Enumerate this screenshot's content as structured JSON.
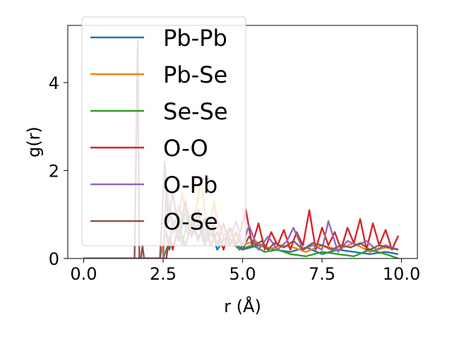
{
  "chart_data": {
    "type": "line",
    "xlabel": "r (Å)",
    "ylabel": "g(r)",
    "xlim": [
      -0.5,
      10.5
    ],
    "ylim": [
      0,
      5.3
    ],
    "xticks": [
      0.0,
      2.5,
      5.0,
      7.5,
      10.0
    ],
    "xtick_labels": [
      "0.0",
      "2.5",
      "5.0",
      "7.5",
      "10.0"
    ],
    "yticks": [
      0,
      2,
      4
    ],
    "ytick_labels": [
      "0",
      "2",
      "4"
    ],
    "grid": false,
    "legend_position": "top-left",
    "series": [
      {
        "name": "Pb-Pb",
        "color": "#1f77b4",
        "x": [
          0.0,
          2.4,
          2.5,
          2.6,
          2.7,
          2.8,
          3.0,
          3.2,
          3.4,
          3.6,
          3.8,
          4.0,
          4.2,
          4.5,
          5.0,
          5.5,
          6.0,
          6.5,
          7.0,
          7.5,
          8.0,
          8.5,
          9.0,
          9.5,
          9.9
        ],
        "y": [
          0.0,
          0.0,
          0.3,
          0.6,
          0.2,
          0.9,
          0.4,
          1.1,
          0.5,
          0.8,
          0.3,
          0.7,
          0.2,
          0.5,
          0.2,
          0.3,
          0.2,
          0.15,
          0.25,
          0.1,
          0.2,
          0.15,
          0.1,
          0.15,
          0.1
        ]
      },
      {
        "name": "Pb-Se",
        "color": "#ff7f0e",
        "x": [
          0.0,
          2.4,
          2.55,
          2.7,
          2.9,
          3.1,
          3.3,
          3.5,
          3.7,
          3.9,
          4.1,
          4.3,
          4.6,
          5.0,
          5.4,
          5.8,
          6.2,
          6.6,
          7.0,
          7.5,
          8.0,
          8.5,
          9.0,
          9.5,
          9.9
        ],
        "y": [
          0.0,
          0.0,
          0.5,
          1.2,
          0.4,
          1.5,
          0.6,
          1.0,
          1.8,
          0.5,
          1.3,
          0.4,
          0.7,
          0.3,
          0.4,
          0.2,
          0.3,
          0.25,
          0.15,
          0.3,
          0.2,
          0.35,
          0.15,
          0.25,
          0.2
        ]
      },
      {
        "name": "Se-Se",
        "color": "#2ca02c",
        "x": [
          0.0,
          2.5,
          2.7,
          2.9,
          3.1,
          3.3,
          3.6,
          3.9,
          4.2,
          4.5,
          4.9,
          5.3,
          5.7,
          6.1,
          6.5,
          7.0,
          7.5,
          8.0,
          8.5,
          9.0,
          9.5,
          9.9
        ],
        "y": [
          0.0,
          0.0,
          0.4,
          0.9,
          0.3,
          1.0,
          0.5,
          0.7,
          0.3,
          0.5,
          0.2,
          0.3,
          0.15,
          0.2,
          0.1,
          0.05,
          0.15,
          0.1,
          0.05,
          0.2,
          0.1,
          0.0
        ]
      },
      {
        "name": "O-O",
        "color": "#d62728",
        "x": [
          0.0,
          2.6,
          2.7,
          2.8,
          3.0,
          3.2,
          3.4,
          3.6,
          3.8,
          4.0,
          4.2,
          4.4,
          4.6,
          4.8,
          5.0,
          5.1,
          5.3,
          5.5,
          5.7,
          5.9,
          6.1,
          6.3,
          6.5,
          6.7,
          6.9,
          7.1,
          7.3,
          7.5,
          7.7,
          7.9,
          8.1,
          8.3,
          8.5,
          8.7,
          8.9,
          9.1,
          9.3,
          9.5,
          9.7,
          9.9
        ],
        "y": [
          0.0,
          0.0,
          0.5,
          0.2,
          0.7,
          0.3,
          0.8,
          0.4,
          0.9,
          0.3,
          0.6,
          0.2,
          0.7,
          0.3,
          0.8,
          1.12,
          0.3,
          0.8,
          0.2,
          0.6,
          0.3,
          0.65,
          0.2,
          0.6,
          0.3,
          1.1,
          0.2,
          0.7,
          0.3,
          0.6,
          0.2,
          0.7,
          0.35,
          0.9,
          0.2,
          0.8,
          0.3,
          0.65,
          0.2,
          0.52
        ]
      },
      {
        "name": "O-Pb",
        "color": "#9467bd",
        "x": [
          0.0,
          2.5,
          2.6,
          2.8,
          3.0,
          3.3,
          3.6,
          3.9,
          4.2,
          4.5,
          4.8,
          5.0,
          5.2,
          5.5,
          5.8,
          6.1,
          6.4,
          6.6,
          6.9,
          7.2,
          7.5,
          7.7,
          8.0,
          8.3,
          8.6,
          8.9,
          9.2,
          9.5,
          9.9
        ],
        "y": [
          0.0,
          0.0,
          1.6,
          0.6,
          1.2,
          0.5,
          1.0,
          0.4,
          0.9,
          0.3,
          0.85,
          0.3,
          0.75,
          0.2,
          0.5,
          0.2,
          0.4,
          0.7,
          0.2,
          0.3,
          0.2,
          0.85,
          0.15,
          0.4,
          0.3,
          0.4,
          0.2,
          0.3,
          0.2
        ]
      },
      {
        "name": "O-Se",
        "color": "#8c564b",
        "x": [
          0.0,
          1.6,
          1.7,
          1.75,
          1.8,
          1.85,
          1.9,
          2.4,
          2.55,
          2.65,
          2.8,
          3.0,
          3.2,
          3.4,
          3.6,
          3.8,
          4.0,
          4.2,
          4.4,
          4.6,
          4.8,
          5.0,
          5.2,
          5.4,
          5.6,
          5.8,
          6.0,
          6.3,
          6.6,
          6.9,
          7.2,
          7.5,
          7.8,
          8.1,
          8.4,
          8.7,
          9.0,
          9.3,
          9.6,
          9.9
        ],
        "y": [
          0.0,
          0.0,
          4.95,
          0.0,
          0.0,
          0.3,
          0.0,
          0.0,
          2.2,
          0.8,
          1.5,
          0.6,
          1.3,
          0.5,
          1.1,
          0.4,
          0.9,
          0.3,
          0.8,
          0.3,
          0.6,
          0.2,
          0.5,
          0.3,
          0.4,
          0.2,
          0.35,
          0.25,
          0.4,
          0.2,
          0.35,
          0.3,
          0.2,
          0.3,
          0.25,
          0.35,
          0.2,
          0.3,
          0.25,
          0.2
        ]
      }
    ]
  }
}
